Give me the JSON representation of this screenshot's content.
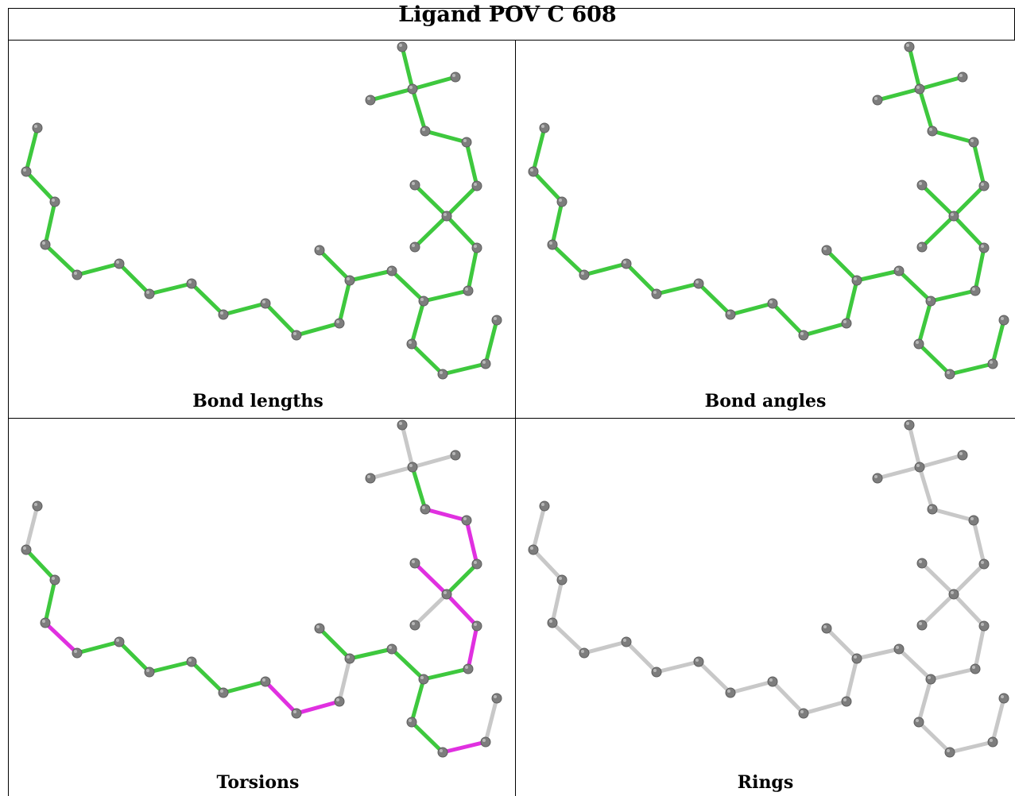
{
  "title": "Ligand POV C 608",
  "panels": [
    {
      "caption": "Bond lengths",
      "scheme": "all-green"
    },
    {
      "caption": "Bond angles",
      "scheme": "all-green"
    },
    {
      "caption": "Torsions",
      "scheme": "torsion"
    },
    {
      "caption": "Rings",
      "scheme": "all-grey"
    }
  ],
  "colors": {
    "green": "#3ec83e",
    "magenta": "#e030e0",
    "grey_bond": "#c8c8c8",
    "atom": "#7d7d7d"
  }
}
